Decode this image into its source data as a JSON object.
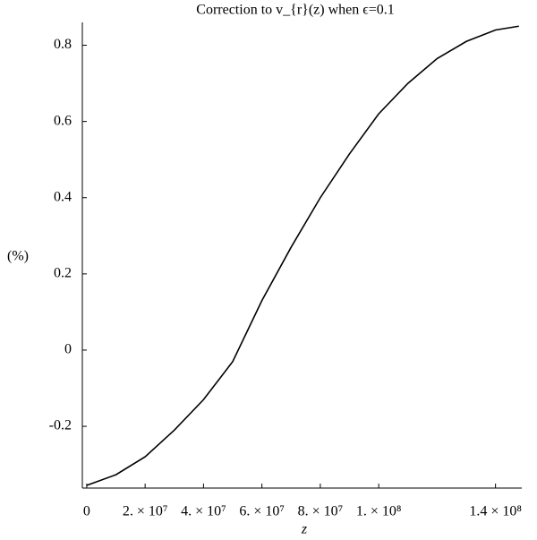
{
  "chart_data": {
    "type": "line",
    "title": "Correction to v_{r}(z) when ϵ=0.1",
    "x_label": "z",
    "y_label": "(%)",
    "x": [
      0,
      10000000,
      20000000,
      30000000,
      40000000,
      50000000,
      60000000,
      70000000,
      80000000,
      90000000,
      100000000,
      110000000,
      120000000,
      130000000,
      140000000,
      148000000
    ],
    "series": [
      {
        "color": "#000000",
        "values": [
          -0.355,
          -0.327,
          -0.28,
          -0.21,
          -0.13,
          -0.03,
          0.13,
          0.27,
          0.4,
          0.515,
          0.62,
          0.7,
          0.765,
          0.81,
          0.84,
          0.85
        ]
      }
    ],
    "xlim": [
      -1500000,
      149000000
    ],
    "ylim": [
      -0.362,
      0.86
    ],
    "xticks": [
      0,
      {
        "value": 20000000,
        "label": "2. × 10⁷"
      },
      {
        "value": 40000000,
        "label": "4. × 10⁷"
      },
      {
        "value": 60000000,
        "label": "6. × 10⁷"
      },
      {
        "value": 80000000,
        "label": "8. × 10⁷"
      },
      {
        "value": 100000000,
        "label": "1. × 10⁸"
      },
      {
        "value": 140000000,
        "label": "1.4 × 10⁸"
      }
    ],
    "yticks": [
      -0.2,
      0,
      0.2,
      0.4,
      0.6,
      0.8
    ]
  }
}
